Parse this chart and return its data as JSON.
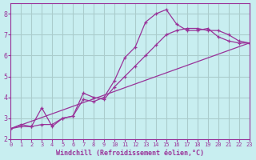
{
  "background_color": "#c8eef0",
  "grid_color": "#aacccc",
  "line_color": "#993399",
  "xlabel": "Windchill (Refroidissement éolien,°C)",
  "xlim": [
    0,
    23
  ],
  "ylim": [
    2,
    8.5
  ],
  "yticks": [
    2,
    3,
    4,
    5,
    6,
    7,
    8
  ],
  "xticks": [
    0,
    1,
    2,
    3,
    4,
    5,
    6,
    7,
    8,
    9,
    10,
    11,
    12,
    13,
    14,
    15,
    16,
    17,
    18,
    19,
    20,
    21,
    22,
    23
  ],
  "curve1_x": [
    0,
    1,
    2,
    3,
    4,
    5,
    6,
    7,
    8,
    9,
    10,
    11,
    12,
    13,
    14,
    15,
    16,
    17,
    18,
    19,
    20,
    21,
    22,
    23
  ],
  "curve1_y": [
    2.5,
    2.7,
    2.6,
    3.5,
    2.6,
    3.0,
    3.1,
    3.9,
    3.8,
    4.0,
    4.8,
    5.9,
    6.4,
    7.6,
    8.0,
    8.2,
    7.5,
    7.2,
    7.2,
    7.3,
    6.9,
    6.7,
    6.6,
    6.6
  ],
  "curve2_x": [
    0,
    1,
    2,
    3,
    4,
    5,
    6,
    7,
    8,
    9,
    10,
    11,
    12,
    13,
    14,
    15,
    16,
    17,
    18,
    19,
    20,
    21,
    22,
    23
  ],
  "curve2_y": [
    2.5,
    2.6,
    2.6,
    2.7,
    2.7,
    3.0,
    3.1,
    4.2,
    4.0,
    3.9,
    4.5,
    5.0,
    5.5,
    6.0,
    6.5,
    7.0,
    7.2,
    7.3,
    7.3,
    7.2,
    7.2,
    7.0,
    6.7,
    6.6
  ],
  "curve3_x": [
    0,
    23
  ],
  "curve3_y": [
    2.5,
    6.6
  ]
}
